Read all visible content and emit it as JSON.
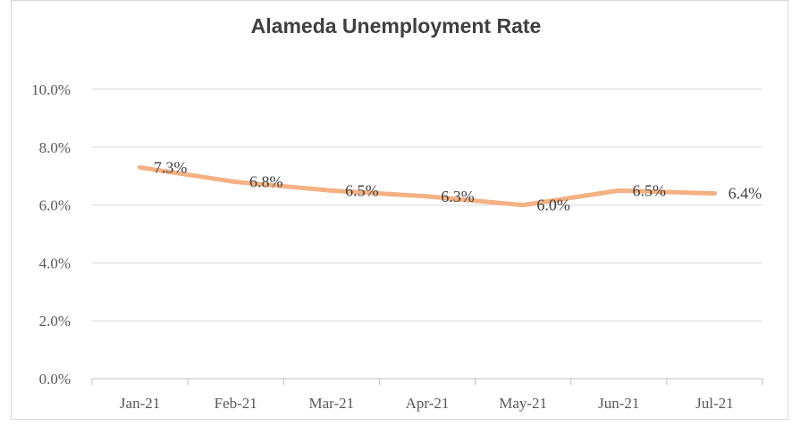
{
  "chart_data": {
    "type": "line",
    "title": "Alameda Unemployment Rate",
    "categories": [
      "Jan-21",
      "Feb-21",
      "Mar-21",
      "Apr-21",
      "May-21",
      "Jun-21",
      "Jul-21"
    ],
    "series": [
      {
        "values": [
          7.3,
          6.8,
          6.5,
          6.3,
          6.0,
          6.5,
          6.4
        ],
        "data_labels": [
          "7.3%",
          "6.8%",
          "6.5%",
          "6.3%",
          "6.0%",
          "6.5%",
          "6.4%"
        ],
        "color": "#F4B183"
      }
    ],
    "y_ticks": [
      0,
      2,
      4,
      6,
      8,
      10
    ],
    "y_tick_labels": [
      "0.0%",
      "2.0%",
      "4.0%",
      "6.0%",
      "8.0%",
      "10.0%"
    ],
    "ylim": [
      0,
      10
    ],
    "grid": true,
    "gridline_color": "#d9d9d9",
    "axis_color": "#bfbfbf",
    "legend": "none"
  }
}
